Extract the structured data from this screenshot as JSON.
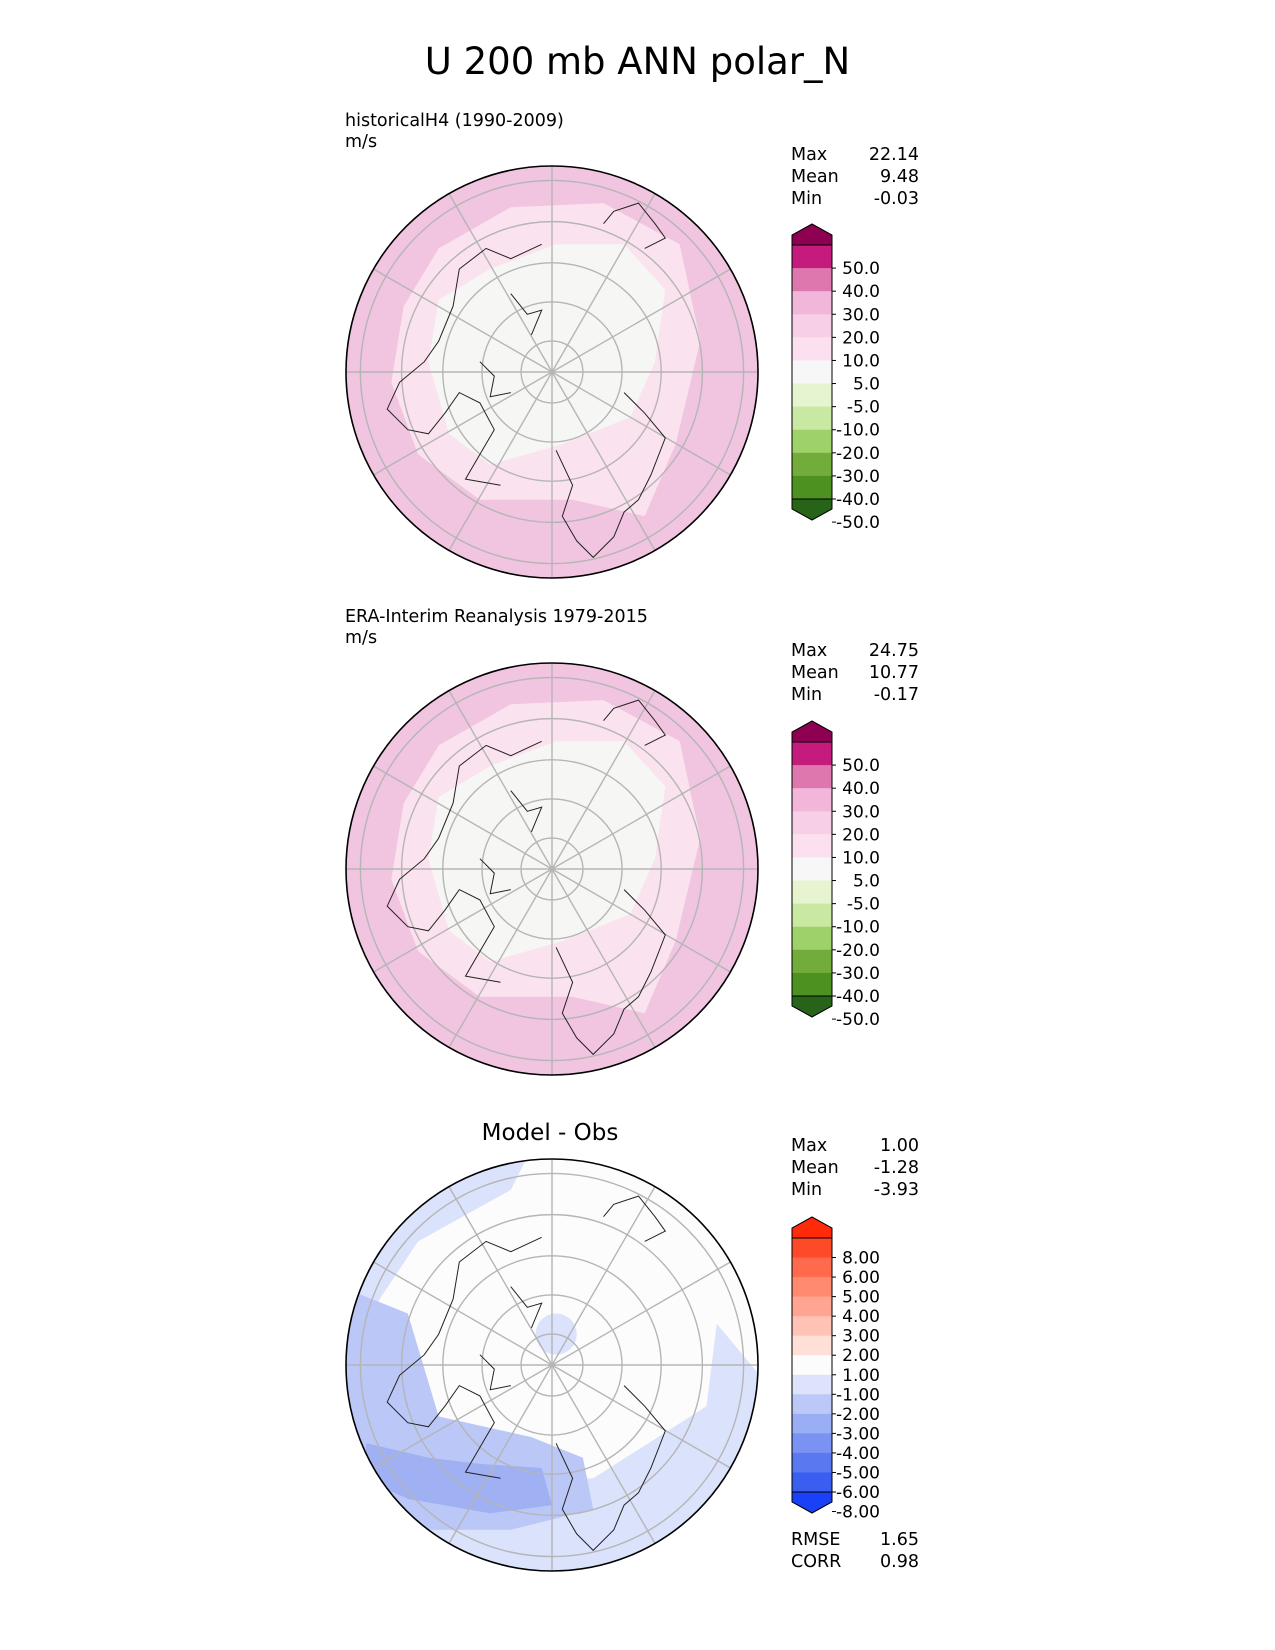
{
  "title": "U 200 mb ANN polar_N",
  "panels": [
    {
      "title": "historicalH4 (1990-2009)",
      "units": "m/s",
      "stats": [
        {
          "label": "Max",
          "value": "22.14"
        },
        {
          "label": "Mean",
          "value": "9.48"
        },
        {
          "label": "Min",
          "value": "-0.03"
        }
      ]
    },
    {
      "title": "ERA-Interim Reanalysis 1979-2015",
      "units": "m/s",
      "stats": [
        {
          "label": "Max",
          "value": "24.75"
        },
        {
          "label": "Mean",
          "value": "10.77"
        },
        {
          "label": "Min",
          "value": "-0.17"
        }
      ]
    },
    {
      "title": "Model - Obs",
      "stats": [
        {
          "label": "Max",
          "value": "1.00"
        },
        {
          "label": "Mean",
          "value": "-1.28"
        },
        {
          "label": "Min",
          "value": "-3.93"
        }
      ],
      "metrics": [
        {
          "label": "RMSE",
          "value": "1.65"
        },
        {
          "label": "CORR",
          "value": "0.98"
        }
      ]
    }
  ],
  "chart_data": [
    {
      "type": "heatmap",
      "projection": "north polar stereographic",
      "title": "historicalH4 (1990-2009)",
      "units": "m/s",
      "colorbar": {
        "ticks": [
          "50.0",
          "40.0",
          "30.0",
          "20.0",
          "10.0",
          "5.0",
          "-5.0",
          "-10.0",
          "-20.0",
          "-30.0",
          "-40.0",
          "-50.0"
        ],
        "colors": [
          "#8e0152",
          "#c51b7d",
          "#de77ae",
          "#f1b6da",
          "#f7cfe6",
          "#fde0ef",
          "#f7f7f7",
          "#e6f5d0",
          "#c9e8a2",
          "#9fd16a",
          "#72ac3a",
          "#4d9221",
          "#276419"
        ],
        "extend": "both"
      },
      "fields": [
        {
          "level": "10 to 20",
          "color": "#f1c4e0"
        },
        {
          "level": "5 to 10",
          "color": "#fbe2ef"
        },
        {
          "level": "-5 to 5",
          "color": "#f6f6f4"
        },
        {
          "level": "20 to 30",
          "color": "#e59ac8"
        }
      ],
      "stats": {
        "max": 22.14,
        "mean": 9.48,
        "min": -0.03
      }
    },
    {
      "type": "heatmap",
      "projection": "north polar stereographic",
      "title": "ERA-Interim Reanalysis 1979-2015",
      "units": "m/s",
      "colorbar": {
        "ticks": [
          "50.0",
          "40.0",
          "30.0",
          "20.0",
          "10.0",
          "5.0",
          "-5.0",
          "-10.0",
          "-20.0",
          "-30.0",
          "-40.0",
          "-50.0"
        ],
        "colors": [
          "#8e0152",
          "#c51b7d",
          "#de77ae",
          "#f1b6da",
          "#f7cfe6",
          "#fde0ef",
          "#f7f7f7",
          "#e6f5d0",
          "#c9e8a2",
          "#9fd16a",
          "#72ac3a",
          "#4d9221",
          "#276419"
        ],
        "extend": "both"
      },
      "fields": [
        {
          "level": "10 to 20",
          "color": "#f1c4e0"
        },
        {
          "level": "5 to 10",
          "color": "#fbe2ef"
        },
        {
          "level": "-5 to 5",
          "color": "#f6f6f4"
        },
        {
          "level": "20 to 30",
          "color": "#e59ac8"
        }
      ],
      "stats": {
        "max": 24.75,
        "mean": 10.77,
        "min": -0.17
      }
    },
    {
      "type": "heatmap",
      "projection": "north polar stereographic",
      "title": "Model - Obs",
      "colorbar": {
        "ticks": [
          "8.00",
          "6.00",
          "5.00",
          "4.00",
          "3.00",
          "2.00",
          "1.00",
          "-1.00",
          "-2.00",
          "-3.00",
          "-4.00",
          "-5.00",
          "-6.00",
          "-8.00"
        ],
        "colors": [
          "#ff2a0a",
          "#ff4a2a",
          "#ff6a4d",
          "#ff8a70",
          "#ffa592",
          "#ffc2b4",
          "#ffe0d8",
          "#fcfcfc",
          "#dce3fb",
          "#bcc8f8",
          "#9aaef6",
          "#7a92f2",
          "#5a78f0",
          "#3a5ef0",
          "#1a40f8"
        ],
        "extend": "both"
      },
      "fields": [
        {
          "level": "-1 to 1",
          "color": "#fcfcfc"
        },
        {
          "level": "-2 to -1",
          "color": "#dbe2fb"
        },
        {
          "level": "-3 to -2",
          "color": "#bac7f7"
        },
        {
          "level": "-4 to -3",
          "color": "#9fb0f3"
        }
      ],
      "stats": {
        "max": 1.0,
        "mean": -1.28,
        "min": -3.93
      },
      "metrics": {
        "RMSE": 1.65,
        "CORR": 0.98
      }
    }
  ]
}
